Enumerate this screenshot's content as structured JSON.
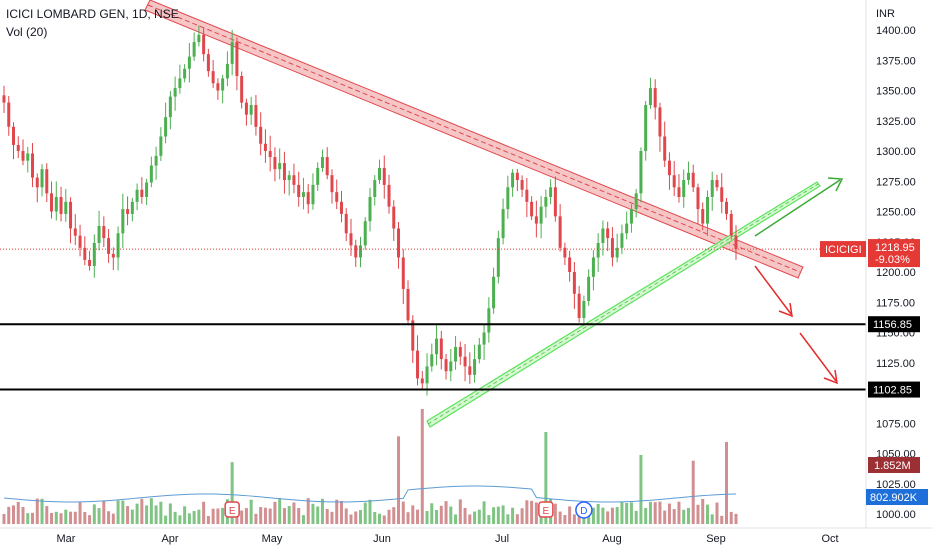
{
  "header": {
    "symbol_line": "ICICI LOMBARD GEN, 1D, NSE",
    "volume_line": "Vol (20)"
  },
  "chart_data": {
    "type": "candlestick",
    "currency": "INR",
    "y_ticks": [
      "1400.00",
      "1375.00",
      "1350.00",
      "1325.00",
      "1300.00",
      "1275.00",
      "1250.00",
      "1225.00",
      "1200.00",
      "1175.00",
      "1150.00",
      "1125.00",
      "1100.00",
      "1075.00",
      "1050.00",
      "1025.00",
      "1000.00"
    ],
    "y_range": [
      995,
      1410
    ],
    "x_labels": [
      "Mar",
      "Apr",
      "May",
      "Jun",
      "Jul",
      "Aug",
      "Sep",
      "Oct"
    ],
    "symbol_tag": "ICICIGI",
    "last_price": "1218.95",
    "change": "-9.03%",
    "support_levels": [
      {
        "label": "1156.85",
        "value": 1156.85
      },
      {
        "label": "1102.85",
        "value": 1102.85
      }
    ],
    "volume": {
      "last_volume": "1.852M",
      "ma_value": "802.902K"
    },
    "colors": {
      "up": "#4caf50",
      "down": "#e0474c",
      "volume_up": "#7fc483",
      "volume_down": "#d18f91",
      "volume_ma": "#5b9bd5",
      "channel_fill": "#f5bcbc",
      "uptrend": "#5be35b",
      "arrow_green": "#3aaa35",
      "arrow_red": "#e32b2b",
      "price_tag": "#e53935",
      "volume_tag_down": "#9c2f33",
      "volume_tag_ma": "#1e6fd9"
    },
    "event_markers": [
      {
        "glyph": "E",
        "date_index": 48
      },
      {
        "glyph": "E",
        "date_index": 114
      },
      {
        "glyph": "D",
        "date_index": 122
      }
    ]
  }
}
